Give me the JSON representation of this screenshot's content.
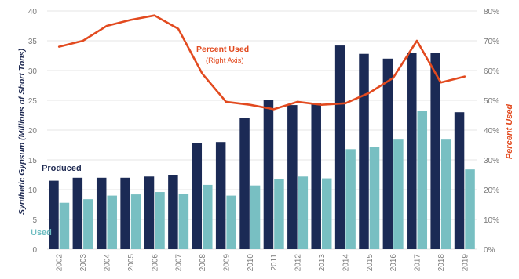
{
  "chart_data": {
    "type": "bar",
    "categories": [
      "2002",
      "2003",
      "2004",
      "2005",
      "2006",
      "2007",
      "2008",
      "2009",
      "2010",
      "2011",
      "2012",
      "2013",
      "2014",
      "2015",
      "2016",
      "2017",
      "2018",
      "2019"
    ],
    "series": [
      {
        "name": "Produced",
        "values": [
          11.5,
          12,
          12,
          12,
          12.2,
          12.5,
          17.8,
          18,
          22,
          25,
          24.2,
          24.5,
          34.2,
          32.8,
          32,
          33,
          33,
          23
        ],
        "color": "#1b2a55"
      },
      {
        "name": "Used",
        "values": [
          7.8,
          8.4,
          9,
          9.2,
          9.6,
          9.3,
          10.8,
          9,
          10.7,
          11.8,
          12.2,
          11.9,
          16.8,
          17.2,
          18.4,
          23.2,
          18.4,
          13.4
        ],
        "color": "#78bfc2"
      }
    ],
    "line_series": {
      "name": "Percent Used",
      "axis": "right",
      "color": "#e24a1f",
      "values": [
        68,
        70,
        75,
        77,
        78.5,
        74,
        59,
        49.5,
        48.5,
        47,
        49.5,
        48.5,
        49,
        52.5,
        57.5,
        70,
        56,
        58
      ]
    },
    "ylabel": "Synthetic Gypsum (Millions of Short Tons)",
    "ylabel_right": "Percent Used",
    "ylim": [
      0,
      40
    ],
    "ylim_right": [
      0,
      80
    ],
    "yticks": [
      "0",
      "5",
      "10",
      "15",
      "20",
      "25",
      "30",
      "35",
      "40"
    ],
    "yticks_right": [
      "0%",
      "10%",
      "20%",
      "30%",
      "40%",
      "50%",
      "60%",
      "70%",
      "80%"
    ],
    "grid": true,
    "annotation": {
      "line1": "Percent Used",
      "line2": "(Right Axis)"
    },
    "legend": {
      "produced": "Produced",
      "used": "Used"
    }
  }
}
